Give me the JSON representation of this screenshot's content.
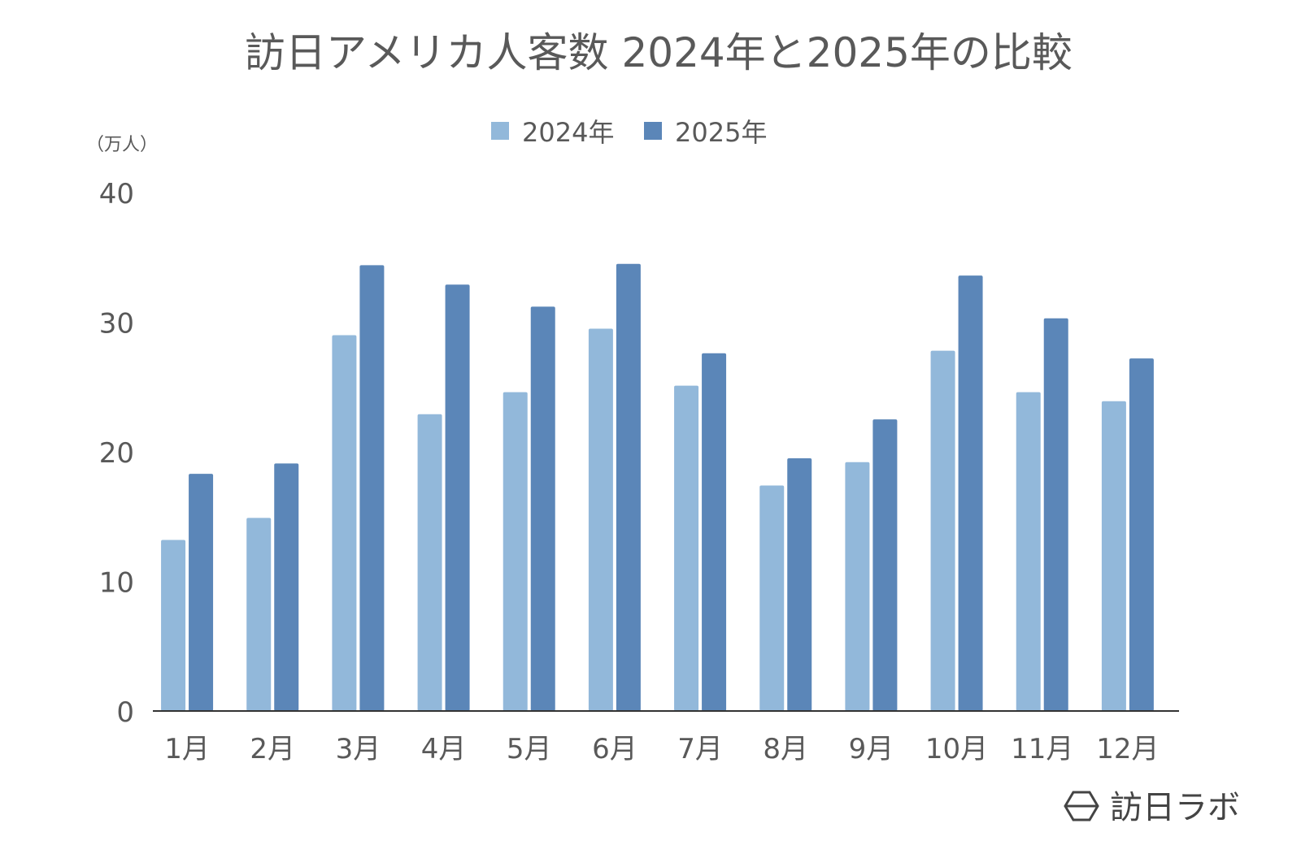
{
  "chart_data": {
    "type": "bar",
    "title": "訪日アメリカ人客数 2024年と2025年の比較",
    "unit_label": "（万人）",
    "xlabel": "",
    "ylabel": "（万人）",
    "ylim": [
      0,
      40
    ],
    "yticks": [
      0,
      10,
      20,
      30,
      40
    ],
    "grid": false,
    "legend_position": "top-center",
    "categories": [
      "1月",
      "2月",
      "3月",
      "4月",
      "5月",
      "6月",
      "7月",
      "8月",
      "9月",
      "10月",
      "11月",
      "12月"
    ],
    "series": [
      {
        "name": "2024年",
        "color": "#92b8da",
        "values": [
          13.2,
          14.9,
          29.0,
          22.9,
          24.6,
          29.5,
          25.1,
          17.4,
          19.2,
          27.8,
          24.6,
          23.9
        ]
      },
      {
        "name": "2025年",
        "color": "#5b86b8",
        "values": [
          18.3,
          19.1,
          34.4,
          32.9,
          31.2,
          34.5,
          27.6,
          19.5,
          22.5,
          33.6,
          30.3,
          27.2
        ]
      }
    ]
  },
  "branding": {
    "logo_text": "訪日ラボ"
  }
}
